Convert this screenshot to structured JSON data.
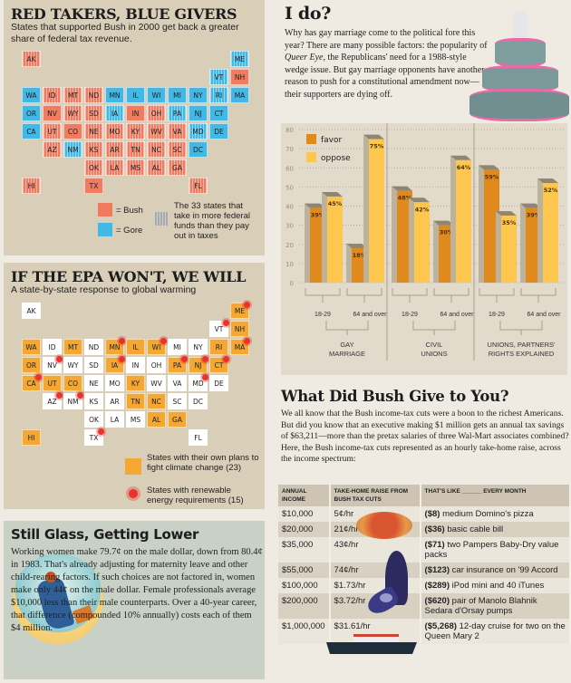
{
  "map1": {
    "title": "RED TAKERS, BLUE GIVERS",
    "subtitle": "States that supported Bush in 2000 get back a greater share of federal tax revenue.",
    "colors": {
      "bush": "#f07b61",
      "gore": "#41b8e6"
    },
    "gore_states": [
      "WA",
      "OR",
      "CA",
      "NM",
      "MN",
      "WI",
      "IA",
      "IL",
      "MI",
      "PA",
      "NY",
      "VT",
      "ME",
      "MA",
      "RI",
      "CT",
      "NJ",
      "DE",
      "MD",
      "DC"
    ],
    "taker_states": [
      "ID",
      "MT",
      "WY",
      "ND",
      "SD",
      "NE",
      "KS",
      "OK",
      "UT",
      "AZ",
      "AK",
      "HI",
      "NM",
      "IA",
      "MO",
      "AR",
      "LA",
      "MS",
      "AL",
      "TN",
      "KY",
      "WV",
      "SC",
      "NC",
      "VA",
      "ME",
      "VT",
      "OH",
      "PA",
      "FL",
      "GA",
      "MD",
      "RI"
    ],
    "legend": {
      "bush": "= Bush",
      "gore": "= Gore",
      "taker": "The 33 states that take in more federal funds than they pay out in taxes"
    }
  },
  "map2": {
    "title": "IF THE EPA WON'T, WE WILL",
    "subtitle": "A state-by-state response to global warming",
    "colors": {
      "plan": "#f5a733",
      "none": "#ffffff",
      "renewable": "#e8332c"
    },
    "plan_states": [
      "WA",
      "OR",
      "CA",
      "MT",
      "UT",
      "CO",
      "MN",
      "WI",
      "IA",
      "IL",
      "KY",
      "TN",
      "AL",
      "GA",
      "NC",
      "PA",
      "NJ",
      "ME",
      "NH",
      "MA",
      "RI",
      "CT",
      "HI"
    ],
    "renewable_states": [
      "CA",
      "NV",
      "AZ",
      "NM",
      "TX",
      "MN",
      "WI",
      "IA",
      "PA",
      "VT",
      "ME",
      "MA",
      "CT",
      "NJ",
      "MD"
    ],
    "legend": {
      "plan": "States with their own plans to fight climate change (23)",
      "renewable": "States with renewable energy requirements (15)"
    }
  },
  "glass": {
    "title": "Still Glass, Getting Lower",
    "text": "Working women make 79.7¢ on the male dollar, down from 80.4¢ in 1983. That's already adjusting for maternity leave and other child-rearing factors. If such choices are not factored in, women make only 44¢ on the male dollar. Female professionals average $10,000 less than their male counterparts. Over a 40-year career, that difference (compounded 10% annually) costs each of them $4 million."
  },
  "ido": {
    "title": "I do?",
    "text_before": "Why has gay marriage come to the political fore this year? There are many possible factors: the popularity of ",
    "text_italic": "Queer Eye",
    "text_after": ", the Republicans' need for a 1988-style wedge issue. But gay marriage opponents have another reason to push for a constitutional amendment now—their supporters are dying off."
  },
  "chart_data": {
    "type": "bar",
    "ylim": [
      0,
      80
    ],
    "yticks": [
      0,
      10,
      20,
      30,
      40,
      50,
      60,
      70,
      80
    ],
    "groups": [
      "GAY MARRIAGE",
      "CIVIL UNIONS",
      "UNIONS, PARTNERS' RIGHTS EXPLAINED"
    ],
    "categories": [
      "18-29",
      "64 and over"
    ],
    "series": [
      {
        "name": "favor",
        "color": "#e08a1e",
        "values": [
          [
            39,
            18
          ],
          [
            48,
            30
          ],
          [
            59,
            39
          ]
        ]
      },
      {
        "name": "oppose",
        "color": "#fdc74f",
        "values": [
          [
            45,
            75
          ],
          [
            42,
            64
          ],
          [
            35,
            52
          ]
        ]
      }
    ],
    "legend": "top-left"
  },
  "bush": {
    "title": "What Did Bush Give to You?",
    "text": "We all know that the Bush income-tax cuts were a boon to the richest Americans. But did you know that an executive making $1 million gets an annual tax savings of $63,211—more than the pretax salaries of three Wal-Mart associates combined? Here, the Bush income-tax cuts represented as an hourly take-home raise, across the income spectrum:",
    "headers": [
      "ANNUAL INCOME",
      "TAKE-HOME RAISE FROM BUSH TAX CUTS",
      "THAT'S LIKE ______ EVERY MONTH"
    ],
    "rows": [
      {
        "income": "$10,000",
        "raise": "5¢/hr",
        "cost": "($8)",
        "item": "medium Domino's pizza"
      },
      {
        "income": "$20,000",
        "raise": "21¢/hr",
        "cost": "($36)",
        "item": "basic cable bill"
      },
      {
        "income": "$35,000",
        "raise": "43¢/hr",
        "cost": "($71)",
        "item": "two Pampers Baby-Dry value packs"
      },
      {
        "income": "$55,000",
        "raise": "74¢/hr",
        "cost": "($123)",
        "item": "car insurance on '99 Accord"
      },
      {
        "income": "$100,000",
        "raise": "$1.73/hr",
        "cost": "($289)",
        "item": "iPod mini and 40 iTunes"
      },
      {
        "income": "$200,000",
        "raise": "$3.72/hr",
        "cost": "($620)",
        "item": "pair of Manolo Blahnik Sedara d'Orsay pumps"
      },
      {
        "income": "$1,000,000",
        "raise": "$31.61/hr",
        "cost": "($5,268)",
        "item": "12-day cruise for two on the Queen Mary 2"
      }
    ]
  }
}
